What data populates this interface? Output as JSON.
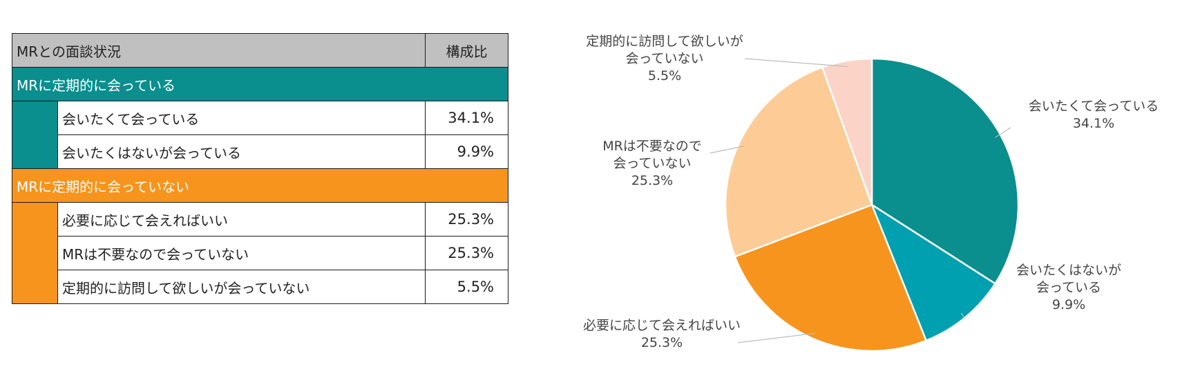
{
  "table": {
    "header": {
      "category": "MRとの面談状況",
      "ratio": "構成比"
    },
    "groups": [
      {
        "title": "MRに定期的に会っている",
        "color": "#0a8e8e",
        "rows": [
          {
            "label": "会いたくて会っている",
            "value": "34.1%"
          },
          {
            "label": "会いたくはないが会っている",
            "value": "9.9%"
          }
        ]
      },
      {
        "title": "MRに定期的に会っていない",
        "color": "#f7941d",
        "rows": [
          {
            "label": "必要に応じて会えればいい",
            "value": "25.3%"
          },
          {
            "label": "MRは不要なので会っていない",
            "value": "25.3%"
          },
          {
            "label": "定期的に訪問して欲しいが会っていない",
            "value": "5.5%"
          }
        ]
      }
    ]
  },
  "chart_data": {
    "type": "pie",
    "start_angle_deg": 0,
    "direction": "clockwise",
    "slices": [
      {
        "label_lines": [
          "会いたくて会っている",
          "34.1%"
        ],
        "value": 34.1,
        "color": "#0a8e8e"
      },
      {
        "label_lines": [
          "会いたくはないが",
          "会っている",
          "9.9%"
        ],
        "value": 9.9,
        "color": "#00a0b0"
      },
      {
        "label_lines": [
          "必要に応じて会えればいい",
          "25.3%"
        ],
        "value": 25.3,
        "color": "#f7941d"
      },
      {
        "label_lines": [
          "MRは不要なので",
          "会っていない",
          "25.3%"
        ],
        "value": 25.3,
        "color": "#fdcc96"
      },
      {
        "label_lines": [
          "定期的に訪問して欲しいが",
          "会っていない",
          "5.5%"
        ],
        "value": 5.5,
        "color": "#fbd3c7"
      }
    ]
  }
}
